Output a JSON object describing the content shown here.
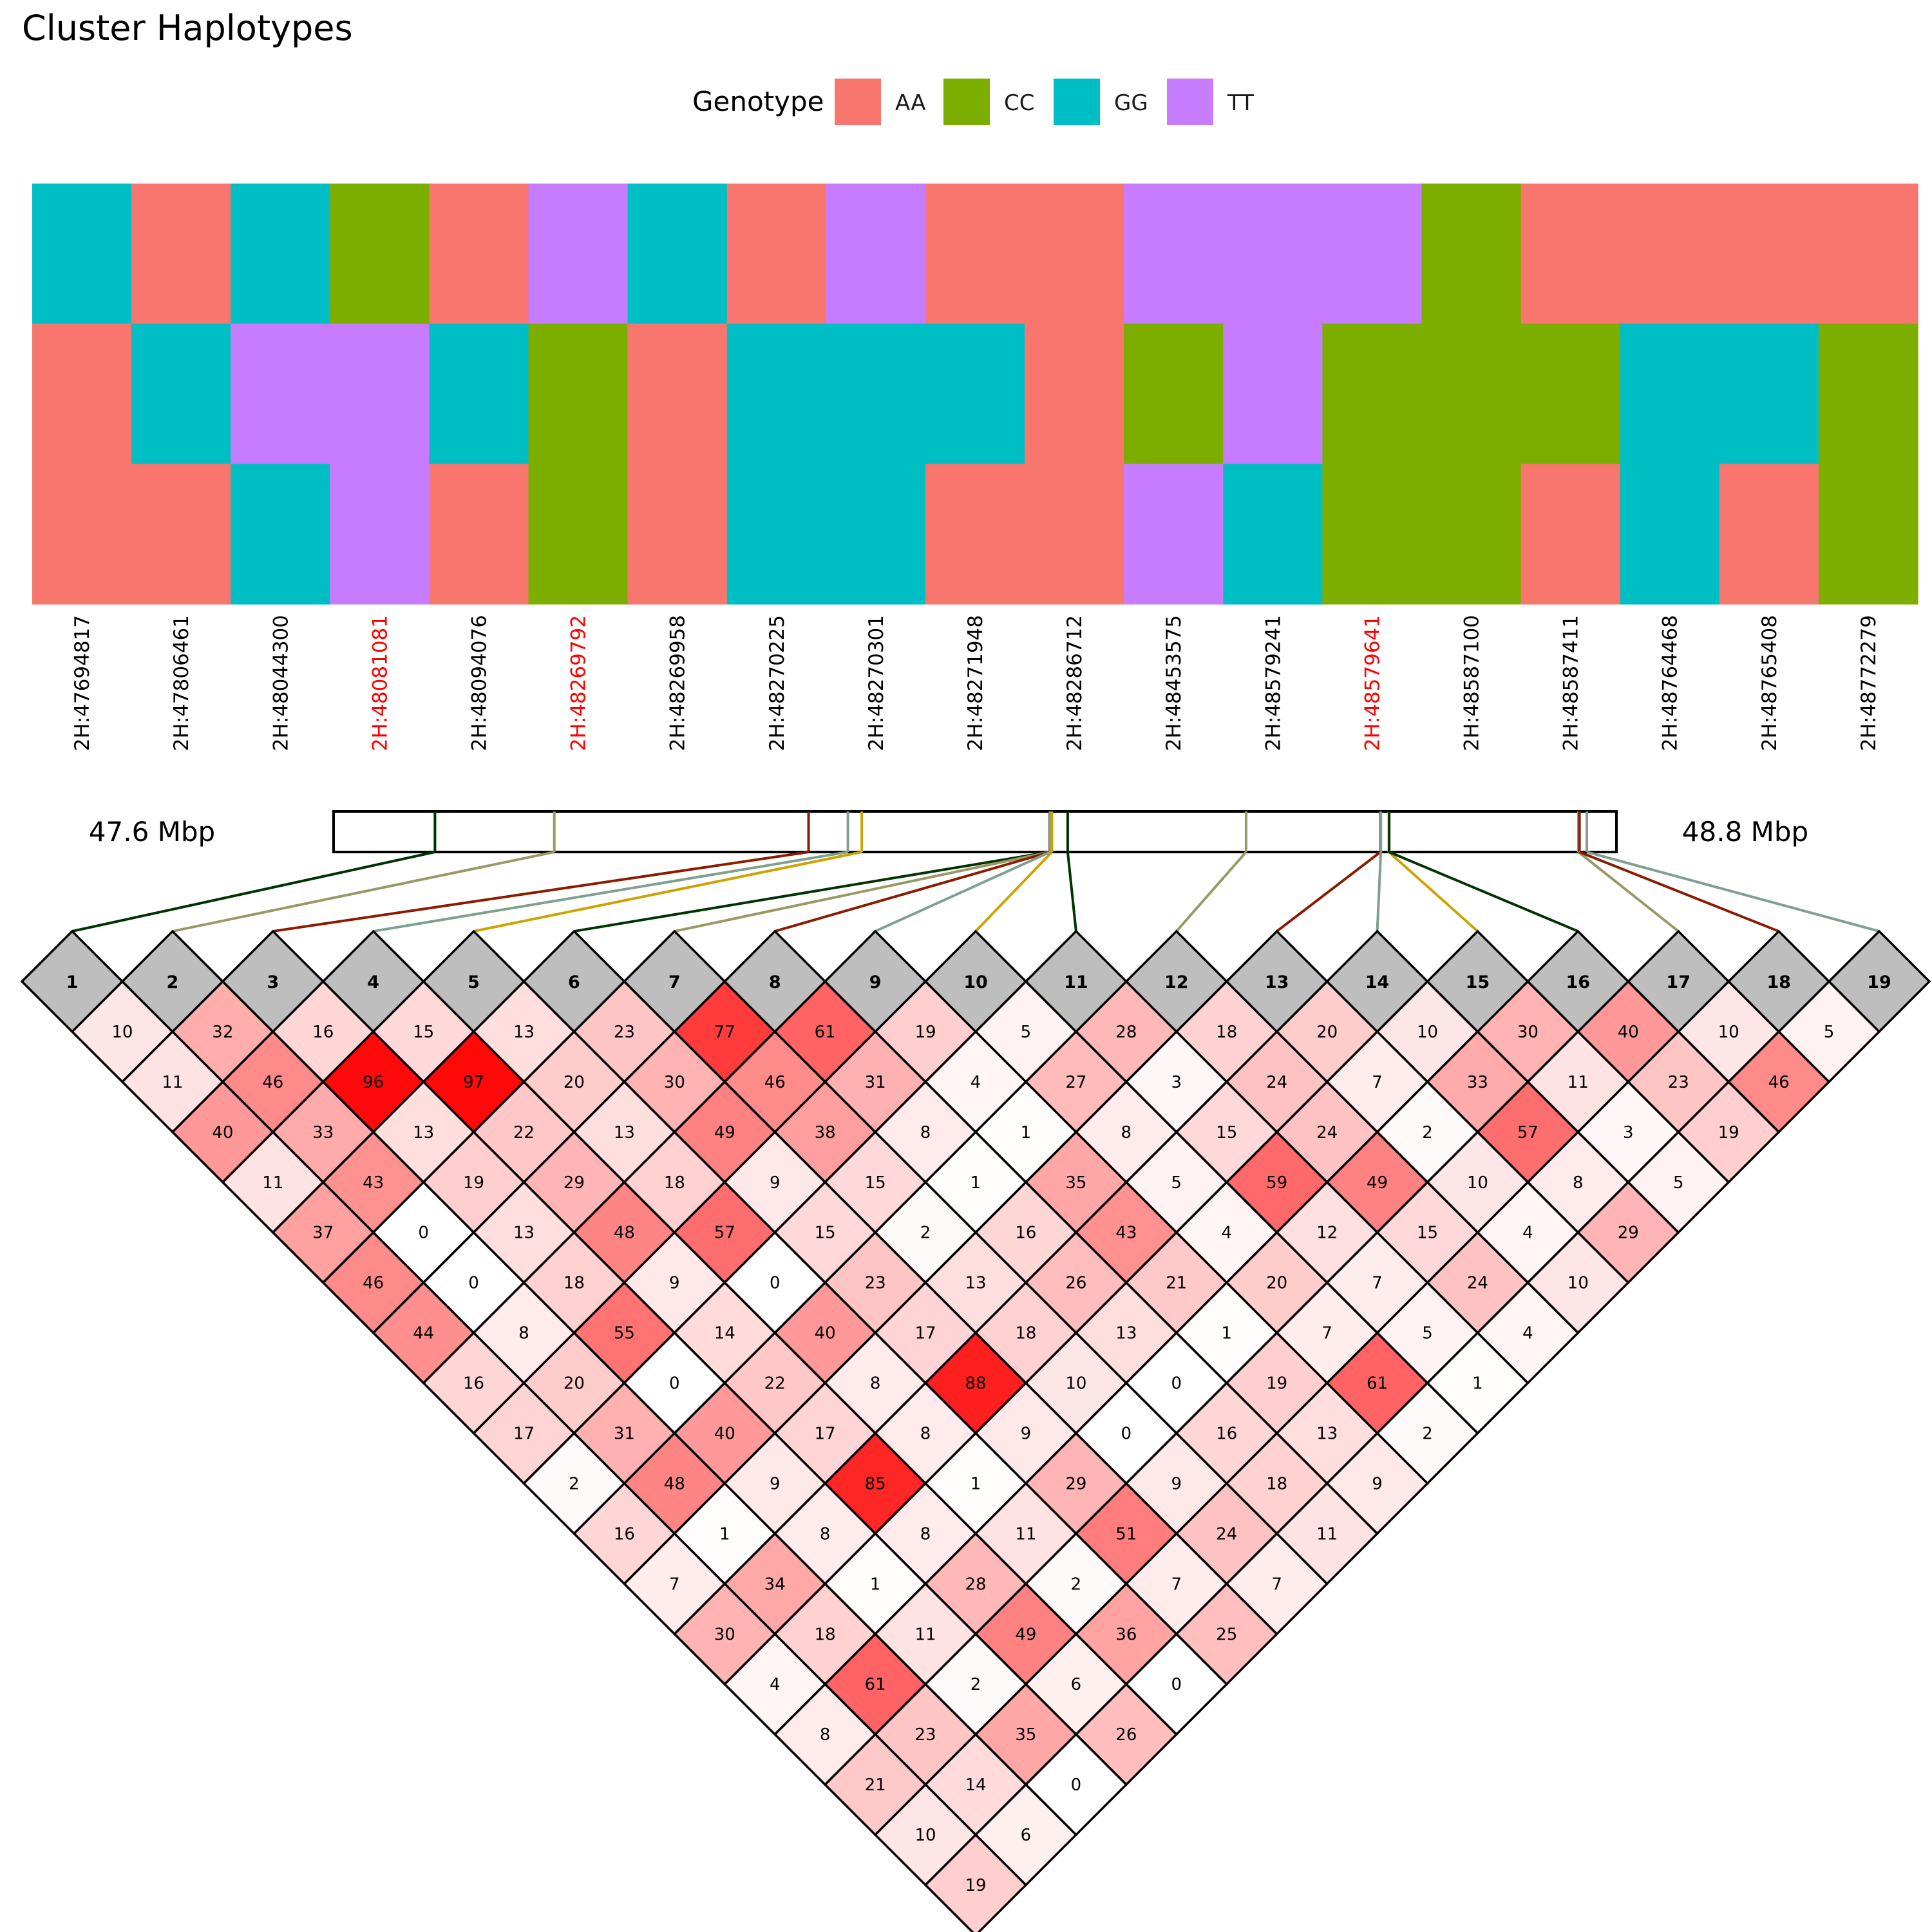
{
  "chart_data": [
    {
      "type": "heatmap",
      "title": "Cluster Haplotypes",
      "legend": {
        "title": "Genotype",
        "placement": "top-center",
        "entries": [
          {
            "label": "AA",
            "color": "#F8766D"
          },
          {
            "label": "CC",
            "color": "#7CAE00"
          },
          {
            "label": "GG",
            "color": "#00BFC4"
          },
          {
            "label": "TT",
            "color": "#C77CFF"
          }
        ]
      },
      "snps": [
        "2H:47694817",
        "2H:47806461",
        "2H:48044300",
        "2H:48081081",
        "2H:48094076",
        "2H:48269792",
        "2H:48269958",
        "2H:48270225",
        "2H:48270301",
        "2H:48271948",
        "2H:48286712",
        "2H:48453575",
        "2H:48579241",
        "2H:48579641",
        "2H:48587100",
        "2H:48587411",
        "2H:48764468",
        "2H:48765408",
        "2H:48772279"
      ],
      "highlighted_snps": [
        3,
        5,
        13
      ],
      "highlight_color": "#FF0000",
      "haplotypes": [
        [
          "GG",
          "AA",
          "GG",
          "CC",
          "AA",
          "TT",
          "GG",
          "AA",
          "TT",
          "AA",
          "AA",
          "TT",
          "TT",
          "TT",
          "CC",
          "AA",
          "AA",
          "AA",
          "AA"
        ],
        [
          "AA",
          "GG",
          "TT",
          "TT",
          "GG",
          "CC",
          "AA",
          "GG",
          "GG",
          "GG",
          "AA",
          "CC",
          "TT",
          "CC",
          "CC",
          "CC",
          "GG",
          "GG",
          "CC"
        ],
        [
          "AA",
          "AA",
          "GG",
          "TT",
          "AA",
          "CC",
          "AA",
          "GG",
          "GG",
          "AA",
          "AA",
          "TT",
          "GG",
          "CC",
          "CC",
          "AA",
          "GG",
          "AA",
          "CC"
        ]
      ]
    },
    {
      "type": "heatmap",
      "subtype": "LD triangle",
      "region_start_label": "47.6 Mbp",
      "region_end_label": "48.8 Mbp",
      "region_start_bp": 47600000,
      "region_end_bp": 48800000,
      "marker_indices": [
        "1",
        "2",
        "3",
        "4",
        "5",
        "6",
        "7",
        "8",
        "9",
        "10",
        "11",
        "12",
        "13",
        "14",
        "15",
        "16",
        "17",
        "18",
        "19"
      ],
      "marker_positions_bp": [
        47694817,
        47806461,
        48044300,
        48081081,
        48094076,
        48269792,
        48269958,
        48270225,
        48270301,
        48271948,
        48286712,
        48453575,
        48579241,
        48579641,
        48587100,
        48587411,
        48764468,
        48765408,
        48772279
      ],
      "connector_colors": [
        "#003300",
        "#999966",
        "#8B1A00",
        "#7F9F8F",
        "#CCA300"
      ],
      "color_scale": {
        "min": 0,
        "max": 100,
        "low": "#FFFFFF",
        "high": "#FF0000"
      },
      "ld_rows": [
        [
          10,
          32,
          16,
          15,
          13,
          23,
          77,
          61,
          19,
          5,
          28,
          18,
          20,
          10,
          30,
          40,
          10,
          5
        ],
        [
          11,
          46,
          96,
          97,
          20,
          30,
          46,
          31,
          4,
          27,
          3,
          24,
          7,
          33,
          11,
          23,
          46
        ],
        [
          40,
          33,
          13,
          22,
          13,
          49,
          38,
          8,
          1,
          8,
          15,
          24,
          2,
          57,
          3,
          19
        ],
        [
          11,
          43,
          19,
          29,
          18,
          9,
          15,
          1,
          35,
          5,
          59,
          49,
          10,
          8,
          5
        ],
        [
          37,
          0,
          13,
          48,
          57,
          15,
          2,
          16,
          43,
          4,
          12,
          15,
          4,
          29
        ],
        [
          46,
          0,
          18,
          9,
          0,
          23,
          13,
          26,
          21,
          20,
          7,
          24,
          10
        ],
        [
          44,
          8,
          55,
          14,
          40,
          17,
          18,
          13,
          1,
          7,
          5,
          4
        ],
        [
          16,
          20,
          0,
          22,
          8,
          88,
          10,
          0,
          19,
          61,
          1
        ],
        [
          17,
          31,
          40,
          17,
          8,
          9,
          0,
          16,
          13,
          2
        ],
        [
          2,
          48,
          9,
          85,
          1,
          29,
          9,
          18,
          9
        ],
        [
          16,
          1,
          8,
          8,
          11,
          51,
          24,
          11
        ],
        [
          7,
          34,
          1,
          28,
          2,
          7,
          7
        ],
        [
          30,
          18,
          11,
          49,
          36,
          25
        ],
        [
          4,
          61,
          2,
          6,
          0
        ],
        [
          8,
          23,
          35,
          26
        ],
        [
          21,
          14,
          0
        ],
        [
          10,
          6
        ],
        [
          19
        ]
      ]
    }
  ]
}
